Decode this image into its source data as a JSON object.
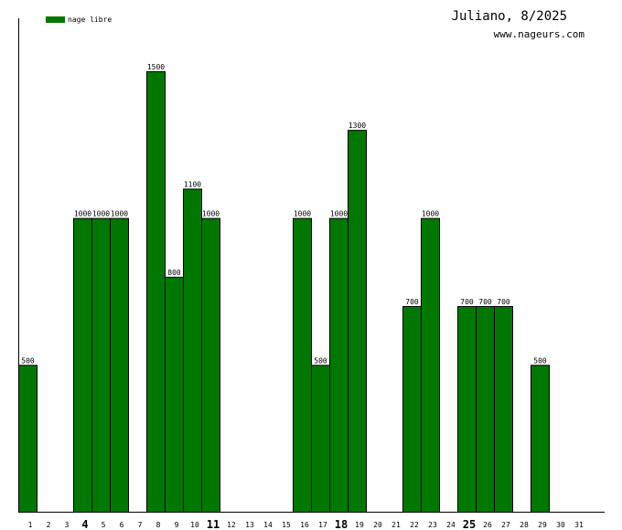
{
  "chart_data": {
    "type": "bar",
    "title": "Juliano, 8/2025",
    "subtitle": "www.nageurs.com",
    "xlabel": "",
    "ylabel": "",
    "ylim": [
      0,
      1680
    ],
    "grid": false,
    "legend_position": "top-left",
    "bar_color": "#007700",
    "categories": [
      "1",
      "2",
      "3",
      "4",
      "5",
      "6",
      "7",
      "8",
      "9",
      "10",
      "11",
      "12",
      "13",
      "14",
      "15",
      "16",
      "17",
      "18",
      "19",
      "20",
      "21",
      "22",
      "23",
      "24",
      "25",
      "26",
      "27",
      "28",
      "29",
      "30",
      "31"
    ],
    "bold_categories": [
      "4",
      "11",
      "18",
      "25"
    ],
    "series": [
      {
        "name": "nage libre",
        "values": [
          500,
          0,
          0,
          1000,
          1000,
          1000,
          0,
          1500,
          800,
          1100,
          1000,
          0,
          0,
          0,
          0,
          1000,
          500,
          1000,
          1300,
          0,
          0,
          700,
          1000,
          0,
          700,
          700,
          700,
          0,
          500,
          0,
          0
        ]
      }
    ]
  }
}
